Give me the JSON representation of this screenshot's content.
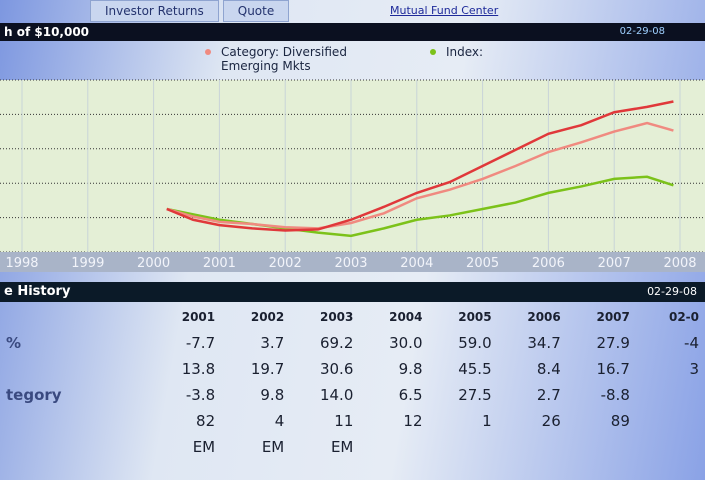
{
  "tabs": [
    {
      "label": "Investor Returns"
    },
    {
      "label": "Quote"
    }
  ],
  "fund_center_link": "Mutual Fund Center",
  "growth_header": {
    "title": "h of $10,000",
    "date": "02-29-08"
  },
  "legend": {
    "category": "Category: Diversified Emerging Mkts",
    "index": "Index:"
  },
  "chart_data": {
    "type": "line",
    "x_ticks": [
      "1998",
      "1999",
      "2000",
      "2001",
      "2002",
      "2003",
      "2004",
      "2005",
      "2006",
      "2007",
      "2008"
    ],
    "xlim": [
      1998,
      2008
    ],
    "grid": true,
    "legend_placement": "top",
    "series": [
      {
        "color": "#e0383a",
        "x": [
          2000.2,
          2000.6,
          2001,
          2001.5,
          2002,
          2002.5,
          2003,
          2003.5,
          2004,
          2004.5,
          2005,
          2005.5,
          2006,
          2006.5,
          2007,
          2007.5,
          2007.9
        ],
        "y": [
          10000,
          9000,
          8500,
          8200,
          8000,
          8100,
          9000,
          10200,
          11500,
          12500,
          14000,
          15500,
          17000,
          17800,
          19000,
          19500,
          20000
        ]
      },
      {
        "name": "Category: Diversified Emerging Mkts",
        "color": "#f08a80",
        "x": [
          2000.2,
          2000.6,
          2001,
          2001.5,
          2002,
          2002.5,
          2003,
          2003.5,
          2004,
          2004.5,
          2005,
          2005.5,
          2006,
          2006.5,
          2007,
          2007.5,
          2007.9
        ],
        "y": [
          10000,
          9300,
          8800,
          8600,
          8300,
          8200,
          8700,
          9600,
          11000,
          11800,
          12800,
          14000,
          15300,
          16200,
          17200,
          18000,
          17300
        ]
      },
      {
        "name": "Index:",
        "color": "#7cc21a",
        "x": [
          2000.2,
          2000.6,
          2001,
          2001.5,
          2002,
          2002.5,
          2003,
          2003.5,
          2004,
          2004.5,
          2005,
          2005.5,
          2006,
          2006.5,
          2007,
          2007.5,
          2007.9
        ],
        "y": [
          10000,
          9500,
          9000,
          8600,
          8200,
          7800,
          7500,
          8200,
          9000,
          9400,
          10000,
          10600,
          11500,
          12100,
          12800,
          13000,
          12200
        ]
      }
    ]
  },
  "history": {
    "title": "e History",
    "date": "02-29-08",
    "columns": [
      "2001",
      "2002",
      "2003",
      "2004",
      "2005",
      "2006",
      "2007",
      "02-0"
    ],
    "rows": [
      {
        "label": "%",
        "values": [
          "-7.7",
          "3.7",
          "69.2",
          "30.0",
          "59.0",
          "34.7",
          "27.9",
          "-4"
        ]
      },
      {
        "label": "",
        "values": [
          "13.8",
          "19.7",
          "30.6",
          "9.8",
          "45.5",
          "8.4",
          "16.7",
          "3"
        ]
      },
      {
        "label": "tegory",
        "values": [
          "-3.8",
          "9.8",
          "14.0",
          "6.5",
          "27.5",
          "2.7",
          "-8.8",
          ""
        ]
      },
      {
        "label": "",
        "values": [
          "82",
          "4",
          "11",
          "12",
          "1",
          "26",
          "89",
          ""
        ]
      },
      {
        "label": "",
        "values": [
          "EM",
          "EM",
          "EM",
          "",
          "",
          "",
          "",
          ""
        ]
      }
    ]
  }
}
